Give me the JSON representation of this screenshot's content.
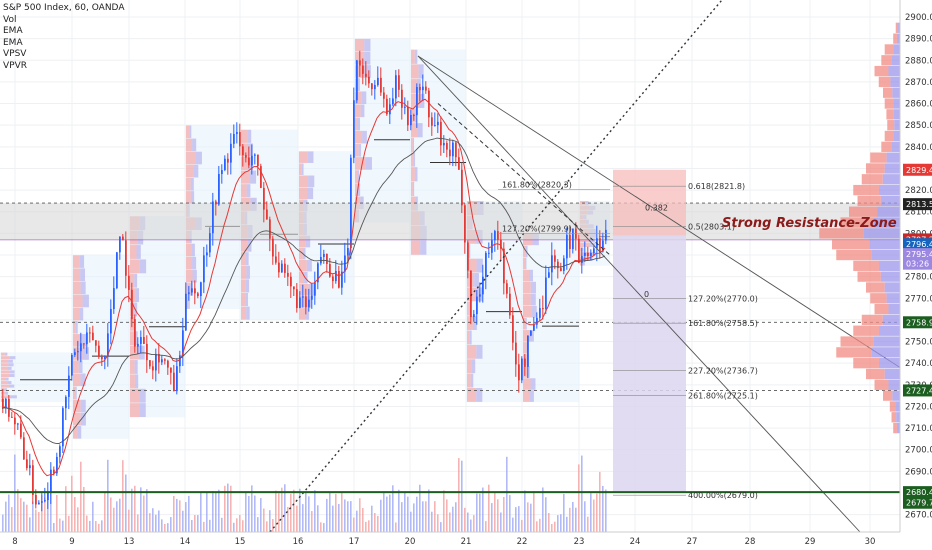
{
  "header": {
    "symbol_line": "S&P 500 Index, 60, OANDA",
    "indicators": [
      "Vol",
      "EMA",
      "EMA",
      "VPSV",
      "VPVR"
    ]
  },
  "colors": {
    "up": "#2962ff",
    "down": "#e53935",
    "zone_fill": "#d9d9d9",
    "support_green": "#1b5e20",
    "risk_fill": "#f8bcbc",
    "reward_fill": "#ddd6f0"
  },
  "annotation": {
    "zone_label": "Strong Resistance-Zone"
  },
  "chart_data": {
    "type": "candlestick",
    "y_axis": {
      "range": [
        2665,
        2905
      ],
      "ticks": [
        2670,
        2680,
        2690,
        2700,
        2710,
        2720,
        2730,
        2740,
        2750,
        2760,
        2770,
        2780,
        2790,
        2800,
        2810,
        2820,
        2830,
        2840,
        2850,
        2860,
        2870,
        2880,
        2890,
        2900
      ],
      "tick_labels": [
        "2670.0",
        "2680.0",
        "2690.0",
        "2700.0",
        "2710.0",
        "2720.0",
        "2730.0",
        "2740.0",
        "2750.0",
        "2760.0",
        "2770.0",
        "2780.0",
        "2790.0",
        "2800.0",
        "2810.0",
        "2820.0",
        "2830.0",
        "2840.0",
        "2850.0",
        "2860.0",
        "2870.0",
        "2880.0",
        "2890.0",
        "2900.0"
      ]
    },
    "x_axis": {
      "range": [
        0,
        900
      ],
      "ticks": [
        {
          "label": "8",
          "x": 15
        },
        {
          "label": "9",
          "x": 72
        },
        {
          "label": "13",
          "x": 129
        },
        {
          "label": "14",
          "x": 185
        },
        {
          "label": "15",
          "x": 240
        },
        {
          "label": "16",
          "x": 298
        },
        {
          "label": "17",
          "x": 354
        },
        {
          "label": "20",
          "x": 410
        },
        {
          "label": "21",
          "x": 466
        },
        {
          "label": "22",
          "x": 522
        },
        {
          "label": "23",
          "x": 579
        },
        {
          "label": "24",
          "x": 635
        },
        {
          "label": "27",
          "x": 692
        },
        {
          "label": "28",
          "x": 750
        },
        {
          "label": "29",
          "x": 810
        },
        {
          "label": "30",
          "x": 870
        }
      ]
    },
    "price_path": [
      [
        0,
        2725
      ],
      [
        10,
        2718
      ],
      [
        20,
        2705
      ],
      [
        28,
        2690
      ],
      [
        36,
        2675
      ],
      [
        46,
        2683
      ],
      [
        56,
        2698
      ],
      [
        64,
        2720
      ],
      [
        72,
        2745
      ],
      [
        82,
        2748
      ],
      [
        92,
        2752
      ],
      [
        100,
        2740
      ],
      [
        108,
        2755
      ],
      [
        114,
        2780
      ],
      [
        118,
        2805
      ],
      [
        124,
        2790
      ],
      [
        130,
        2760
      ],
      [
        136,
        2748
      ],
      [
        142,
        2752
      ],
      [
        150,
        2740
      ],
      [
        158,
        2745
      ],
      [
        166,
        2738
      ],
      [
        172,
        2728
      ],
      [
        178,
        2738
      ],
      [
        184,
        2765
      ],
      [
        190,
        2780
      ],
      [
        196,
        2770
      ],
      [
        204,
        2790
      ],
      [
        212,
        2812
      ],
      [
        220,
        2828
      ],
      [
        228,
        2838
      ],
      [
        236,
        2845
      ],
      [
        244,
        2832
      ],
      [
        252,
        2838
      ],
      [
        260,
        2822
      ],
      [
        268,
        2800
      ],
      [
        274,
        2790
      ],
      [
        280,
        2782
      ],
      [
        288,
        2775
      ],
      [
        296,
        2770
      ],
      [
        304,
        2765
      ],
      [
        312,
        2770
      ],
      [
        320,
        2790
      ],
      [
        328,
        2785
      ],
      [
        336,
        2780
      ],
      [
        342,
        2778
      ],
      [
        348,
        2800
      ],
      [
        352,
        2860
      ],
      [
        356,
        2880
      ],
      [
        362,
        2875
      ],
      [
        370,
        2868
      ],
      [
        378,
        2872
      ],
      [
        386,
        2855
      ],
      [
        394,
        2870
      ],
      [
        402,
        2862
      ],
      [
        410,
        2850
      ],
      [
        418,
        2870
      ],
      [
        424,
        2865
      ],
      [
        430,
        2848
      ],
      [
        436,
        2850
      ],
      [
        444,
        2835
      ],
      [
        452,
        2838
      ],
      [
        460,
        2822
      ],
      [
        466,
        2790
      ],
      [
        470,
        2760
      ],
      [
        476,
        2770
      ],
      [
        482,
        2780
      ],
      [
        490,
        2800
      ],
      [
        498,
        2798
      ],
      [
        506,
        2770
      ],
      [
        512,
        2748
      ],
      [
        518,
        2735
      ],
      [
        524,
        2742
      ],
      [
        530,
        2755
      ],
      [
        536,
        2762
      ],
      [
        542,
        2770
      ],
      [
        548,
        2785
      ],
      [
        554,
        2790
      ],
      [
        560,
        2780
      ],
      [
        566,
        2795
      ],
      [
        572,
        2800
      ],
      [
        578,
        2790
      ],
      [
        584,
        2795
      ],
      [
        590,
        2788
      ],
      [
        596,
        2800
      ],
      [
        600,
        2794
      ],
      [
        606,
        2798
      ]
    ],
    "volume_profile_prices": [
      2895,
      2890,
      2885,
      2880,
      2875,
      2870,
      2865,
      2860,
      2855,
      2850,
      2845,
      2840,
      2835,
      2830,
      2825,
      2820,
      2815,
      2810,
      2805,
      2800,
      2795,
      2790,
      2785,
      2780,
      2775,
      2770,
      2765,
      2760,
      2755,
      2750,
      2745,
      2740,
      2735,
      2730,
      2725,
      2720,
      2715,
      2710
    ],
    "volume_profile_sizes": [
      0.05,
      0.08,
      0.18,
      0.22,
      0.3,
      0.25,
      0.2,
      0.18,
      0.16,
      0.15,
      0.18,
      0.22,
      0.35,
      0.4,
      0.45,
      0.55,
      0.5,
      0.6,
      0.7,
      0.95,
      0.8,
      0.75,
      0.55,
      0.5,
      0.4,
      0.35,
      0.3,
      0.45,
      0.55,
      0.7,
      0.75,
      0.55,
      0.4,
      0.3,
      0.2,
      0.12,
      0.1,
      0.08
    ],
    "fibonacci_left": [
      {
        "label": "161.80%(2820.3)",
        "price": 2820.3
      },
      {
        "label": "127.20%(2799.9)",
        "price": 2799.9
      }
    ],
    "fibonacci_right": [
      {
        "label": "0.618(2821.8)",
        "price": 2821.8
      },
      {
        "label": "0.5(2803.1)",
        "price": 2803.1
      },
      {
        "label": "127.20%(2770.0)",
        "price": 2770.0
      },
      {
        "label": "161.80%(2758.5)",
        "price": 2758.5
      },
      {
        "label": "227.20%(2736.7)",
        "price": 2736.7
      },
      {
        "label": "261.80%(2725.1)",
        "price": 2725.1
      },
      {
        "label": "400.00%(2679.0)",
        "price": 2679.0
      }
    ],
    "fib_zero_labels": [
      {
        "label": "0.382",
        "price": 2812
      },
      {
        "label": "0",
        "price": 2772
      }
    ],
    "price_tags": [
      {
        "label": "2829.4",
        "price": 2829.4,
        "color": "#e53935"
      },
      {
        "label": "2813.5",
        "price": 2813.5,
        "color": "#222222"
      },
      {
        "label": "2797.2",
        "price": 2797.2,
        "color": "#c62828"
      },
      {
        "label": "2796.4",
        "price": 2795.0,
        "color": "#1565c0"
      },
      {
        "label": "2795.4",
        "price": 2790.4,
        "color": "#9c88e0"
      },
      {
        "label": "03:26",
        "price": 2786.0,
        "color": "#9c88e0"
      },
      {
        "label": "2758.9",
        "price": 2758.9,
        "color": "#1b5e20"
      },
      {
        "label": "2727.4",
        "price": 2727.4,
        "color": "#1b5e20"
      },
      {
        "label": "2680.4",
        "price": 2680.4,
        "color": "#1b5e20"
      },
      {
        "label": "2679.7",
        "price": 2675.5,
        "color": "#1b5e20"
      }
    ],
    "resistance_zone": [
      2797,
      2814
    ],
    "support_line": 2680.4,
    "risk_box": {
      "x0": 613,
      "x1": 686,
      "top": 2829.4,
      "bottom": 2799
    },
    "reward_box": {
      "x0": 613,
      "x1": 686,
      "top": 2799,
      "bottom": 2680
    }
  }
}
